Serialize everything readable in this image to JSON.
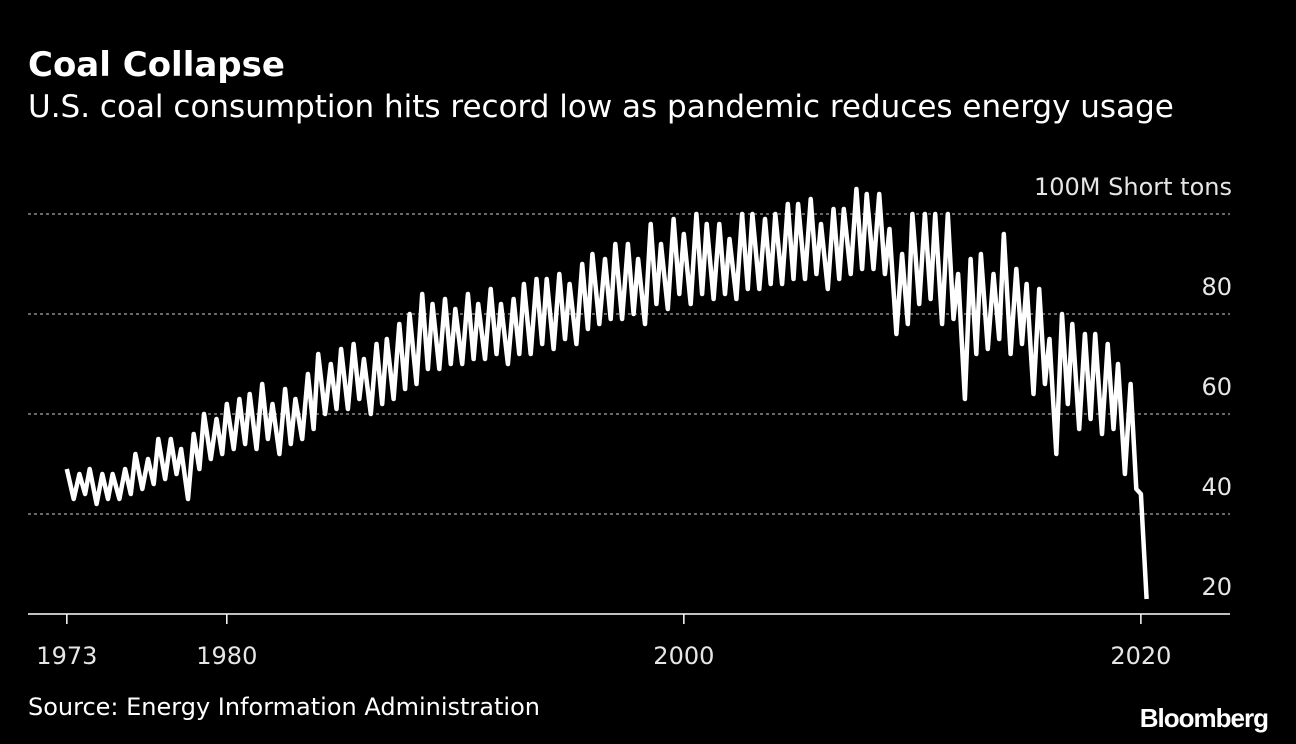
{
  "chart_data": {
    "type": "line",
    "title": "Coal Collapse",
    "subtitle": "U.S. coal consumption hits record low as pandemic reduces energy usage",
    "source": "Source: Energy Information Administration",
    "brand": "Bloomberg",
    "xlim": [
      1971.3,
      2023.9
    ],
    "xticks": [
      1973,
      1980,
      2000,
      2020
    ],
    "ylim": [
      20,
      106
    ],
    "yticks": [
      20,
      40,
      60,
      80,
      {
        "value": 100,
        "label": "100M Short tons"
      }
    ],
    "grid": true,
    "series": [
      {
        "name": "U.S. coal consumption",
        "color": "#ffffff",
        "x": [
          1973,
          1973.3,
          1973.55,
          1973.8,
          1974,
          1974.3,
          1974.55,
          1974.8,
          1975,
          1975.3,
          1975.55,
          1975.8,
          1976,
          1976.3,
          1976.55,
          1976.8,
          1977,
          1977.3,
          1977.55,
          1977.8,
          1978,
          1978.3,
          1978.55,
          1978.8,
          1979,
          1979.3,
          1979.55,
          1979.8,
          1980,
          1980.3,
          1980.55,
          1980.8,
          1981,
          1981.3,
          1981.55,
          1981.8,
          1982,
          1982.3,
          1982.55,
          1982.8,
          1983,
          1983.3,
          1983.55,
          1983.8,
          1984,
          1984.3,
          1984.55,
          1984.8,
          1985,
          1985.3,
          1985.55,
          1985.8,
          1986,
          1986.3,
          1986.55,
          1986.8,
          1987,
          1987.3,
          1987.55,
          1987.8,
          1988,
          1988.3,
          1988.55,
          1988.8,
          1989,
          1989.3,
          1989.55,
          1989.8,
          1990,
          1990.3,
          1990.55,
          1990.8,
          1991,
          1991.3,
          1991.55,
          1991.8,
          1992,
          1992.3,
          1992.55,
          1992.8,
          1993,
          1993.3,
          1993.55,
          1993.8,
          1994,
          1994.3,
          1994.55,
          1994.8,
          1995,
          1995.3,
          1995.55,
          1995.8,
          1996,
          1996.3,
          1996.55,
          1996.8,
          1997,
          1997.3,
          1997.55,
          1997.8,
          1998,
          1998.3,
          1998.55,
          1998.8,
          1999,
          1999.3,
          1999.55,
          1999.8,
          2000,
          2000.3,
          2000.55,
          2000.8,
          2001,
          2001.3,
          2001.55,
          2001.8,
          2002,
          2002.3,
          2002.55,
          2002.8,
          2003,
          2003.3,
          2003.55,
          2003.8,
          2004,
          2004.3,
          2004.55,
          2004.8,
          2005,
          2005.3,
          2005.55,
          2005.8,
          2006,
          2006.3,
          2006.55,
          2006.8,
          2007,
          2007.3,
          2007.55,
          2007.8,
          2008,
          2008.3,
          2008.55,
          2008.8,
          2009,
          2009.3,
          2009.55,
          2009.8,
          2010,
          2010.3,
          2010.55,
          2010.8,
          2011,
          2011.3,
          2011.55,
          2011.8,
          2012,
          2012.3,
          2012.55,
          2012.8,
          2013,
          2013.3,
          2013.55,
          2013.8,
          2014,
          2014.3,
          2014.55,
          2014.8,
          2015,
          2015.3,
          2015.55,
          2015.8,
          2016,
          2016.3,
          2016.55,
          2016.8,
          2017,
          2017.3,
          2017.55,
          2017.8,
          2018,
          2018.3,
          2018.55,
          2018.8,
          2019,
          2019.3,
          2019.55,
          2019.8,
          2020,
          2020.25
        ],
        "values": [
          49,
          43,
          48,
          44,
          49,
          42,
          48,
          43,
          48,
          43,
          49,
          44,
          52,
          45,
          51,
          46,
          55,
          47,
          55,
          48,
          53,
          43,
          56,
          49,
          60,
          51,
          59,
          52,
          62,
          53,
          63,
          54,
          64,
          53,
          66,
          55,
          62,
          52,
          65,
          54,
          63,
          55,
          68,
          57,
          72,
          60,
          70,
          61,
          73,
          61,
          74,
          63,
          71,
          60,
          74,
          62,
          75,
          63,
          78,
          65,
          80,
          66,
          84,
          69,
          82,
          69,
          83,
          70,
          81,
          70,
          84,
          71,
          82,
          71,
          85,
          72,
          82,
          70,
          83,
          72,
          86,
          72,
          87,
          74,
          87,
          73,
          88,
          75,
          86,
          74,
          90,
          77,
          92,
          78,
          91,
          79,
          94,
          79,
          94,
          80,
          91,
          78,
          98,
          82,
          94,
          81,
          99,
          84,
          96,
          82,
          100,
          84,
          98,
          83,
          98,
          84,
          95,
          83,
          100,
          85,
          100,
          85,
          99,
          86,
          100,
          86,
          102,
          87,
          102,
          87,
          103,
          88,
          98,
          85,
          101,
          87,
          101,
          88,
          105,
          89,
          104,
          89,
          104,
          88,
          97,
          76,
          92,
          78,
          100,
          82,
          100,
          83,
          100,
          78,
          100,
          79,
          88,
          63,
          91,
          72,
          92,
          73,
          88,
          75,
          96,
          72,
          89,
          74,
          86,
          64,
          85,
          66,
          75,
          52,
          80,
          62,
          78,
          57,
          76,
          59,
          76,
          56,
          74,
          57,
          70,
          48,
          66,
          45,
          44,
          23
        ]
      }
    ]
  }
}
